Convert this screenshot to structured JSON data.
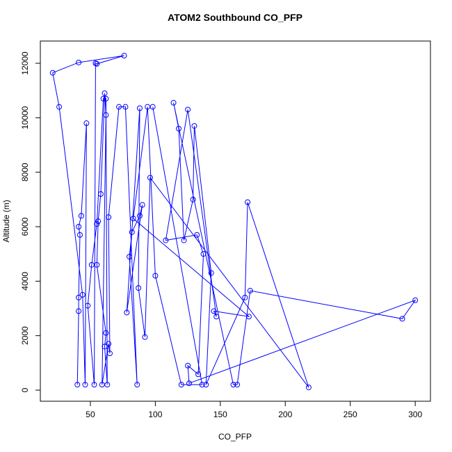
{
  "chart_data": {
    "type": "line",
    "title": "ATOM2 Southbound CO_PFP",
    "x_label": "CO_PFP",
    "y_label": "Altitude (m)",
    "color": "#0000ff",
    "x": [
      40,
      41,
      41,
      42,
      41,
      43,
      47,
      46,
      44,
      26,
      21,
      41,
      76,
      55,
      54,
      53,
      48,
      51,
      55,
      60,
      62,
      63,
      61,
      62,
      55,
      56,
      58,
      61,
      62,
      59,
      64,
      65,
      64,
      72,
      77,
      86,
      80,
      82,
      88,
      90,
      78,
      88,
      87,
      92,
      96,
      218,
      171,
      169,
      139,
      143,
      130,
      129,
      122,
      118,
      114,
      160,
      163,
      173,
      290,
      300,
      126,
      125,
      133,
      137,
      132,
      108,
      125,
      147,
      145,
      172,
      83,
      94,
      100,
      120,
      136,
      98
    ],
    "values": [
      200,
      2900,
      3400,
      5700,
      6000,
      6400,
      9800,
      200,
      3500,
      10400,
      11650,
      12030,
      12280,
      11980,
      12000,
      200,
      3100,
      4600,
      6100,
      10700,
      10700,
      200,
      1600,
      2100,
      4600,
      6200,
      7200,
      10900,
      10100,
      200,
      1700,
      1350,
      6350,
      10400,
      10400,
      200,
      4900,
      5800,
      6400,
      6800,
      2850,
      10350,
      3750,
      1950,
      7800,
      100,
      6900,
      3400,
      200,
      4300,
      9700,
      7000,
      5500,
      9600,
      10550,
      200,
      200,
      3650,
      2620,
      3300,
      250,
      900,
      580,
      5000,
      5700,
      5500,
      10300,
      2700,
      2900,
      2700,
      6300,
      10400,
      4200,
      200,
      200,
      10400
    ],
    "xlim": [
      11.5,
      311.7
    ],
    "ylim": [
      -408,
      12817
    ],
    "xticks": [
      50,
      100,
      150,
      200,
      250,
      300
    ],
    "yticks": [
      0,
      2000,
      4000,
      6000,
      8000,
      10000,
      12000
    ]
  }
}
